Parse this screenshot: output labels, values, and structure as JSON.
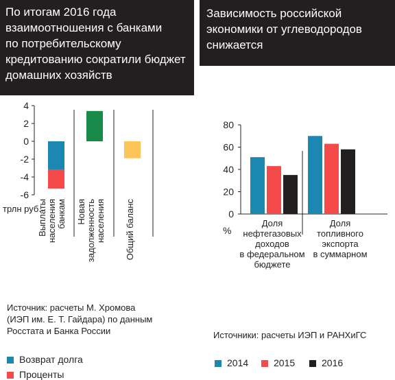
{
  "left": {
    "title": "По итогам 2016 года\nвзаимоотношения с банками\nпо потребительскому\nкредитованию сократили бюджет\nдомашних хозяйств",
    "unit_label": "трлн руб.",
    "legend": [
      {
        "label": "Возврат долга",
        "color": "#1c87b0"
      },
      {
        "label": "Проценты",
        "color": "#f44a4a"
      }
    ],
    "source": "Источник: расчеты М. Хромова\n(ИЭП им. Е. Т. Гайдара) по данным\nРосстата и Банка России"
  },
  "right": {
    "title": "Зависимость российской\nэкономики от углеводородов\nснижается",
    "unit_label": "%",
    "legend": [
      {
        "label": "2014",
        "color": "#1c87b0"
      },
      {
        "label": "2015",
        "color": "#f44a4a"
      },
      {
        "label": "2016",
        "color": "#231f20"
      }
    ],
    "source": "Источники: расчеты ИЭП и РАНХиГС"
  },
  "chart_data": [
    {
      "type": "bar",
      "ylim": [
        -6,
        4
      ],
      "yticks": [
        "4",
        "2",
        "0",
        "-2",
        "-4",
        "-6"
      ],
      "categories": [
        [
          "Выплаты",
          "населения",
          "банкам"
        ],
        [
          "Новая",
          "задолженность",
          "населения"
        ],
        [
          "Общий баланс"
        ]
      ],
      "bars": [
        {
          "category": 0,
          "segments": [
            {
              "series": "Возврат долга",
              "from": 0,
              "to": -3.2,
              "color": "#1c87b0"
            },
            {
              "series": "Проценты",
              "from": -3.2,
              "to": -5.3,
              "color": "#f44a4a"
            }
          ]
        },
        {
          "category": 1,
          "segments": [
            {
              "series": "Новая задолженность населения",
              "from": 0,
              "to": 3.4,
              "color": "#1a8a4a"
            }
          ]
        },
        {
          "category": 2,
          "segments": [
            {
              "series": "Общий баланс",
              "from": 0,
              "to": -1.9,
              "color": "#fdc45a"
            }
          ]
        }
      ],
      "ylabel": "трлн руб."
    },
    {
      "type": "bar",
      "ylim": [
        0,
        80
      ],
      "yticks": [
        "80",
        "60",
        "40",
        "20",
        "0"
      ],
      "categories": [
        [
          "Доля",
          "нефтегазовых",
          "доходов",
          "в федеральном",
          "бюджете"
        ],
        [
          "Доля",
          "топливного",
          "экспорта",
          "в суммарном"
        ]
      ],
      "series": [
        {
          "name": "2014",
          "color": "#1c87b0",
          "values": [
            51,
            70
          ]
        },
        {
          "name": "2015",
          "color": "#f44a4a",
          "values": [
            43,
            63
          ]
        },
        {
          "name": "2016",
          "color": "#231f20",
          "values": [
            35,
            58
          ]
        }
      ],
      "ylabel": "%"
    }
  ]
}
